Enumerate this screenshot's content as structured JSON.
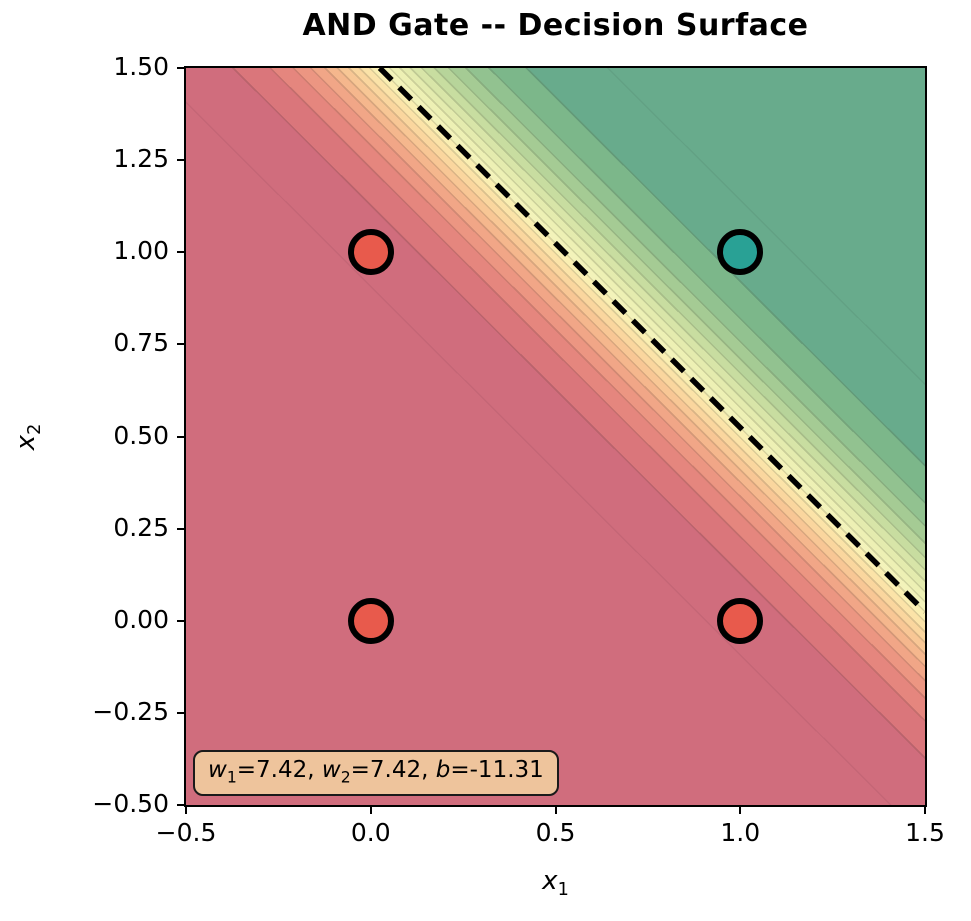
{
  "title": "AND Gate -- Decision Surface",
  "colors": {
    "figure_background": "#ffffff",
    "spine": "#000000",
    "tick": "#000000",
    "title_text": "#000000",
    "boundary_line": "#000000",
    "annotation_background": "#EEC49C",
    "annotation_border": "#1a1a1a",
    "point_edge": "#000000",
    "negative_class_point": "#E85A4C",
    "positive_class_point": "#29A195",
    "flat_negative_region": "#D06D7D",
    "flat_positive_region": "#68AB8C"
  },
  "chart_data": {
    "type": "heatmap",
    "subtype": "decision-surface-contourf",
    "title": "AND Gate -- Decision Surface",
    "xlabel": {
      "base": "x",
      "sub": "1"
    },
    "ylabel": {
      "base": "x",
      "sub": "2"
    },
    "xlim": [
      -0.5,
      1.5
    ],
    "ylim": [
      -0.5,
      1.5
    ],
    "grid": false,
    "legend": null,
    "xticks": [
      {
        "value": -0.5,
        "label": "−0.5"
      },
      {
        "value": 0.0,
        "label": "0.0"
      },
      {
        "value": 0.5,
        "label": "0.5"
      },
      {
        "value": 1.0,
        "label": "1.0"
      },
      {
        "value": 1.5,
        "label": "1.5"
      }
    ],
    "yticks": [
      {
        "value": 1.5,
        "label": "1.50"
      },
      {
        "value": 1.25,
        "label": "1.25"
      },
      {
        "value": 1.0,
        "label": "1.00"
      },
      {
        "value": 0.75,
        "label": "0.75"
      },
      {
        "value": 0.5,
        "label": "0.50"
      },
      {
        "value": 0.25,
        "label": "0.25"
      },
      {
        "value": 0.0,
        "label": "0.00"
      },
      {
        "value": -0.25,
        "label": "−0.25"
      },
      {
        "value": -0.5,
        "label": "−0.50"
      }
    ],
    "model": {
      "w1": 7.42,
      "w2": 7.42,
      "b": -11.31,
      "activation": "sigmoid"
    },
    "decision_boundary": {
      "equation": "7.42*x1 + 7.42*x2 - 11.31 = 0",
      "style": "dashed",
      "color": "#000000"
    },
    "points": [
      {
        "x": 0,
        "y": 0,
        "label": 0,
        "color": "#E85A4C"
      },
      {
        "x": 0,
        "y": 1,
        "label": 0,
        "color": "#E85A4C"
      },
      {
        "x": 1,
        "y": 0,
        "label": 0,
        "color": "#E85A4C"
      },
      {
        "x": 1,
        "y": 1,
        "label": 1,
        "color": "#29A195"
      }
    ],
    "contour": {
      "level_step": 0.05,
      "band_colors": [
        "#D06D7D",
        "#DA767B",
        "#E5867E",
        "#EC9682",
        "#F1A687",
        "#F5B78D",
        "#F8C795",
        "#FAD69E",
        "#FBE3A8",
        "#FAEFB2",
        "#F3F3BA",
        "#EDF0B4",
        "#E4EBAE",
        "#D8E5A8",
        "#C8DDA0",
        "#B7D49A",
        "#A5CB94",
        "#92C290",
        "#7CB78A",
        "#68AB8C"
      ]
    },
    "annotation": {
      "text": "w1=7.42, w2=7.42, b=-11.31",
      "segments": [
        {
          "t": "w",
          "style": "italic"
        },
        {
          "t": "1",
          "style": "sub"
        },
        {
          "t": "=7.42, ",
          "style": ""
        },
        {
          "t": "w",
          "style": "italic"
        },
        {
          "t": "2",
          "style": "sub"
        },
        {
          "t": "=7.42, ",
          "style": ""
        },
        {
          "t": "b",
          "style": "italic"
        },
        {
          "t": "=-11.31",
          "style": ""
        }
      ]
    }
  }
}
